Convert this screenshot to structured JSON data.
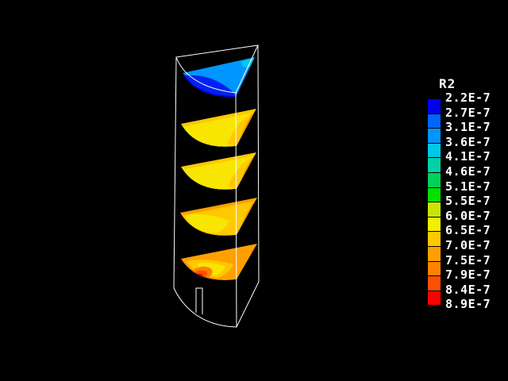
{
  "app": {
    "background_color": "#000000"
  },
  "figure": {
    "description": "3D wireframe of a quarter-cylinder sector with a small bottom notch, containing five horizontal contour slices of variable R2",
    "wireframe_color": "#FFFFFF",
    "extra_colors": {
      "deep_blue": "#0022F0",
      "slice_yellow": "#F8E600"
    }
  },
  "legend": {
    "title": "R2",
    "labels": [
      "2.2E-7",
      "2.7E-7",
      "3.1E-7",
      "3.6E-7",
      "4.1E-7",
      "4.6E-7",
      "5.1E-7",
      "5.5E-7",
      "6.0E-7",
      "6.5E-7",
      "7.0E-7",
      "7.5E-7",
      "7.9E-7",
      "8.4E-7",
      "8.9E-7"
    ],
    "colors": [
      "#0000F0",
      "#0064FF",
      "#0096FF",
      "#00C8E6",
      "#00D2A5",
      "#00D25A",
      "#00E100",
      "#C8E600",
      "#F0F000",
      "#FFC800",
      "#FFA000",
      "#FF8200",
      "#FF5000",
      "#FF0000"
    ]
  },
  "chart_data": {
    "type": "heatmap",
    "subtype": "3d_contour_slices",
    "title": "R2",
    "legend_title": "R2",
    "legend_position": "right",
    "tick_labels": [
      "2.2E-7",
      "2.7E-7",
      "3.1E-7",
      "3.6E-7",
      "4.1E-7",
      "4.6E-7",
      "5.1E-7",
      "5.5E-7",
      "6.0E-7",
      "6.5E-7",
      "7.0E-7",
      "7.5E-7",
      "7.9E-7",
      "8.4E-7",
      "8.9E-7"
    ],
    "tick_values": [
      2.2e-07,
      2.7e-07,
      3.1e-07,
      3.6e-07,
      4.1e-07,
      4.6e-07,
      5.1e-07,
      5.5e-07,
      6e-07,
      6.5e-07,
      7e-07,
      7.5e-07,
      7.9e-07,
      8.4e-07,
      8.9e-07
    ],
    "value_range": [
      2.2e-07,
      8.9e-07
    ],
    "colors": [
      "#0000F0",
      "#0064FF",
      "#0096FF",
      "#00C8E6",
      "#00D2A5",
      "#00D25A",
      "#00E100",
      "#C8E600",
      "#F0F000",
      "#FFC800",
      "#FFA000",
      "#FF8200",
      "#FF5000",
      "#FF0000"
    ],
    "geometry": "quarter-cylinder sector wireframe, axis on the right, small rectangular notch at bottom rim",
    "slices": [
      {
        "id": 1,
        "vertical_position": "top",
        "value_range_label": "2.2E-7 to 4.1E-7",
        "dominant_colors": [
          "#0022F0",
          "#0096FF",
          "#00C8E6"
        ],
        "description": "coolest slice: deep blue lower body, azure band along back edge, cyan sliver at axis corner"
      },
      {
        "id": 2,
        "vertical_position": "upper-middle",
        "value_range_label": "6.0E-7 to 8.4E-7",
        "dominant_colors": [
          "#F8E600",
          "#FFC800",
          "#FFA000"
        ],
        "description": "yellow body, gold along back edge, orange wedge toward axis"
      },
      {
        "id": 3,
        "vertical_position": "middle",
        "value_range_label": "5.5E-7 to 8.4E-7",
        "dominant_colors": [
          "#F8E600",
          "#C8E600",
          "#FFA000"
        ],
        "description": "yellow body with yellow-green streaks at left rim, orange wedge toward axis"
      },
      {
        "id": 4,
        "vertical_position": "lower-middle",
        "value_range_label": "6.0E-7 to 8.4E-7",
        "dominant_colors": [
          "#F8E600",
          "#FFC800",
          "#FFA000",
          "#FF8200"
        ],
        "description": "yellow core, gold ring, orange along back edge and axis wedge"
      },
      {
        "id": 5,
        "vertical_position": "bottom",
        "value_range_label": "6.5E-7 to 8.9E-7",
        "dominant_colors": [
          "#FFC800",
          "#FFA000",
          "#FF5000",
          "#FF0000"
        ],
        "description": "hottest slice: orange/gold body with concentric red hot spot near lower-left rim"
      }
    ]
  }
}
